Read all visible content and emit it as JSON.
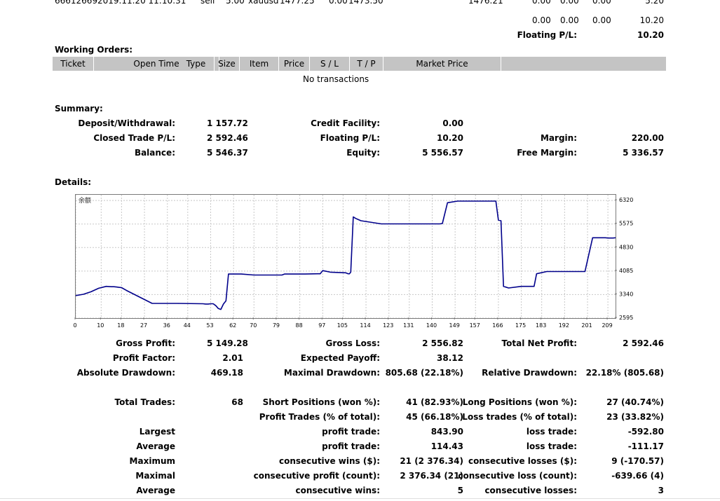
{
  "top_rows": {
    "row1": {
      "ticket": "66612669",
      "open_time": "2019.11.20 11:10:31",
      "type": "sell",
      "size": "5.00",
      "item": "xauusd",
      "price": "1477.25",
      "sl": "0.00",
      "tp": "1473.50",
      "market_price": "1476.21",
      "c1": "0.00",
      "c2": "0.00",
      "c3": "0.00",
      "profit": "5.20"
    },
    "row2": {
      "c1": "0.00",
      "c2": "0.00",
      "c3": "0.00",
      "profit": "10.20"
    },
    "floating_label": "Floating P/L:",
    "floating_value": "10.20"
  },
  "working_orders": {
    "title": "Working Orders:",
    "columns": [
      "Ticket",
      "Open Time",
      "Type",
      "Size",
      "Item",
      "Price",
      "S / L",
      "T / P",
      "Market Price"
    ],
    "empty_text": "No transactions"
  },
  "summary": {
    "title": "Summary:",
    "rows": [
      [
        {
          "label": "Deposit/Withdrawal:",
          "value": "1 157.72"
        },
        {
          "label": "Credit Facility:",
          "value": "0.00"
        },
        {
          "label": "",
          "value": ""
        }
      ],
      [
        {
          "label": "Closed Trade P/L:",
          "value": "2 592.46"
        },
        {
          "label": "Floating P/L:",
          "value": "10.20"
        },
        {
          "label": "Margin:",
          "value": "220.00"
        }
      ],
      [
        {
          "label": "Balance:",
          "value": "5 546.37"
        },
        {
          "label": "Equity:",
          "value": "5 556.57"
        },
        {
          "label": "Free Margin:",
          "value": "5 336.57"
        }
      ]
    ]
  },
  "details": {
    "title": "Details:"
  },
  "chart_data": {
    "type": "line",
    "legend_label": "余额",
    "x_ticks": [
      0,
      10,
      18,
      27,
      36,
      44,
      53,
      62,
      70,
      79,
      88,
      97,
      105,
      114,
      123,
      131,
      140,
      149,
      157,
      166,
      175,
      183,
      192,
      201,
      209
    ],
    "y_ticks": [
      6320,
      5575,
      4830,
      4085,
      3340,
      2595
    ],
    "xlim": [
      0,
      212
    ],
    "ylim": [
      2595,
      6500
    ],
    "grid": true,
    "series": [
      {
        "x": [
          0,
          3,
          6,
          9,
          12,
          14,
          15,
          16,
          17,
          18,
          20,
          30,
          40,
          50,
          51,
          52,
          53,
          53.5,
          54,
          55,
          56,
          57,
          58,
          59,
          60,
          65,
          70,
          80,
          81,
          82,
          90,
          95,
          96,
          97,
          100,
          106,
          107,
          107.5,
          108,
          109,
          110,
          112,
          120,
          130,
          140,
          141,
          142,
          143,
          144,
          146,
          150,
          155,
          160,
          161,
          162,
          163,
          164,
          164.5,
          165,
          166,
          167,
          168,
          170,
          175,
          176,
          177,
          178,
          179,
          180,
          181,
          185,
          190,
          195,
          200,
          203,
          205,
          207,
          208,
          209,
          211,
          212
        ],
        "y": [
          3310,
          3350,
          3430,
          3540,
          3600,
          3590,
          3590,
          3580,
          3570,
          3560,
          3470,
          3060,
          3060,
          3050,
          3040,
          3040,
          3050,
          3050,
          3050,
          2990,
          2900,
          2870,
          3040,
          3140,
          3990,
          3990,
          3960,
          3960,
          3960,
          3990,
          3990,
          4000,
          4000,
          4100,
          4050,
          4030,
          4000,
          4000,
          4050,
          5800,
          5750,
          5680,
          5580,
          5580,
          5580,
          5580,
          5580,
          5580,
          5590,
          6250,
          6300,
          6300,
          6300,
          6300,
          6300,
          6300,
          6300,
          6300,
          6300,
          5700,
          5680,
          3600,
          3550,
          3600,
          3600,
          3600,
          3600,
          3600,
          3600,
          4000,
          4070,
          4070,
          4070,
          4070,
          5140,
          5140,
          5140,
          5140,
          5130,
          5130,
          5140
        ]
      }
    ]
  },
  "stats": {
    "gross_profit": {
      "label": "Gross Profit:",
      "value": "5 149.28"
    },
    "gross_loss": {
      "label": "Gross Loss:",
      "value": "2 556.82"
    },
    "total_net_profit": {
      "label": "Total Net Profit:",
      "value": "2 592.46"
    },
    "profit_factor": {
      "label": "Profit Factor:",
      "value": "2.01"
    },
    "expected_payoff": {
      "label": "Expected Payoff:",
      "value": "38.12"
    },
    "absolute_drawdown": {
      "label": "Absolute Drawdown:",
      "value": "469.18"
    },
    "maximal_drawdown": {
      "label": "Maximal Drawdown:",
      "value": "805.68 (22.18%)"
    },
    "relative_drawdown": {
      "label": "Relative Drawdown:",
      "value": "22.18% (805.68)"
    },
    "total_trades": {
      "label": "Total Trades:",
      "value": "68"
    },
    "short_positions": {
      "label": "Short Positions (won %):",
      "value": "41 (82.93%)"
    },
    "long_positions": {
      "label": "Long Positions (won %):",
      "value": "27 (40.74%)"
    },
    "profit_trades": {
      "label": "Profit Trades (% of total):",
      "value": "45 (66.18%)"
    },
    "loss_trades": {
      "label": "Loss trades (% of total):",
      "value": "23 (33.82%)"
    },
    "largest": {
      "label": "Largest",
      "p_label": "profit trade:",
      "p_value": "843.90",
      "l_label": "loss trade:",
      "l_value": "-592.80"
    },
    "average": {
      "label": "Average",
      "p_label": "profit trade:",
      "p_value": "114.43",
      "l_label": "loss trade:",
      "l_value": "-111.17"
    },
    "maximum": {
      "label": "Maximum",
      "p_label": "consecutive wins ($):",
      "p_value": "21 (2 376.34)",
      "l_label": "consecutive losses ($):",
      "l_value": "9 (-170.57)"
    },
    "maximal": {
      "label": "Maximal",
      "p_label": "consecutive profit (count):",
      "p_value": "2 376.34 (21)",
      "l_label": "consecutive loss (count):",
      "l_value": "-639.66 (4)"
    },
    "average2": {
      "label": "Average",
      "p_label": "consecutive wins:",
      "p_value": "5",
      "l_label": "consecutive losses:",
      "l_value": "3"
    }
  }
}
